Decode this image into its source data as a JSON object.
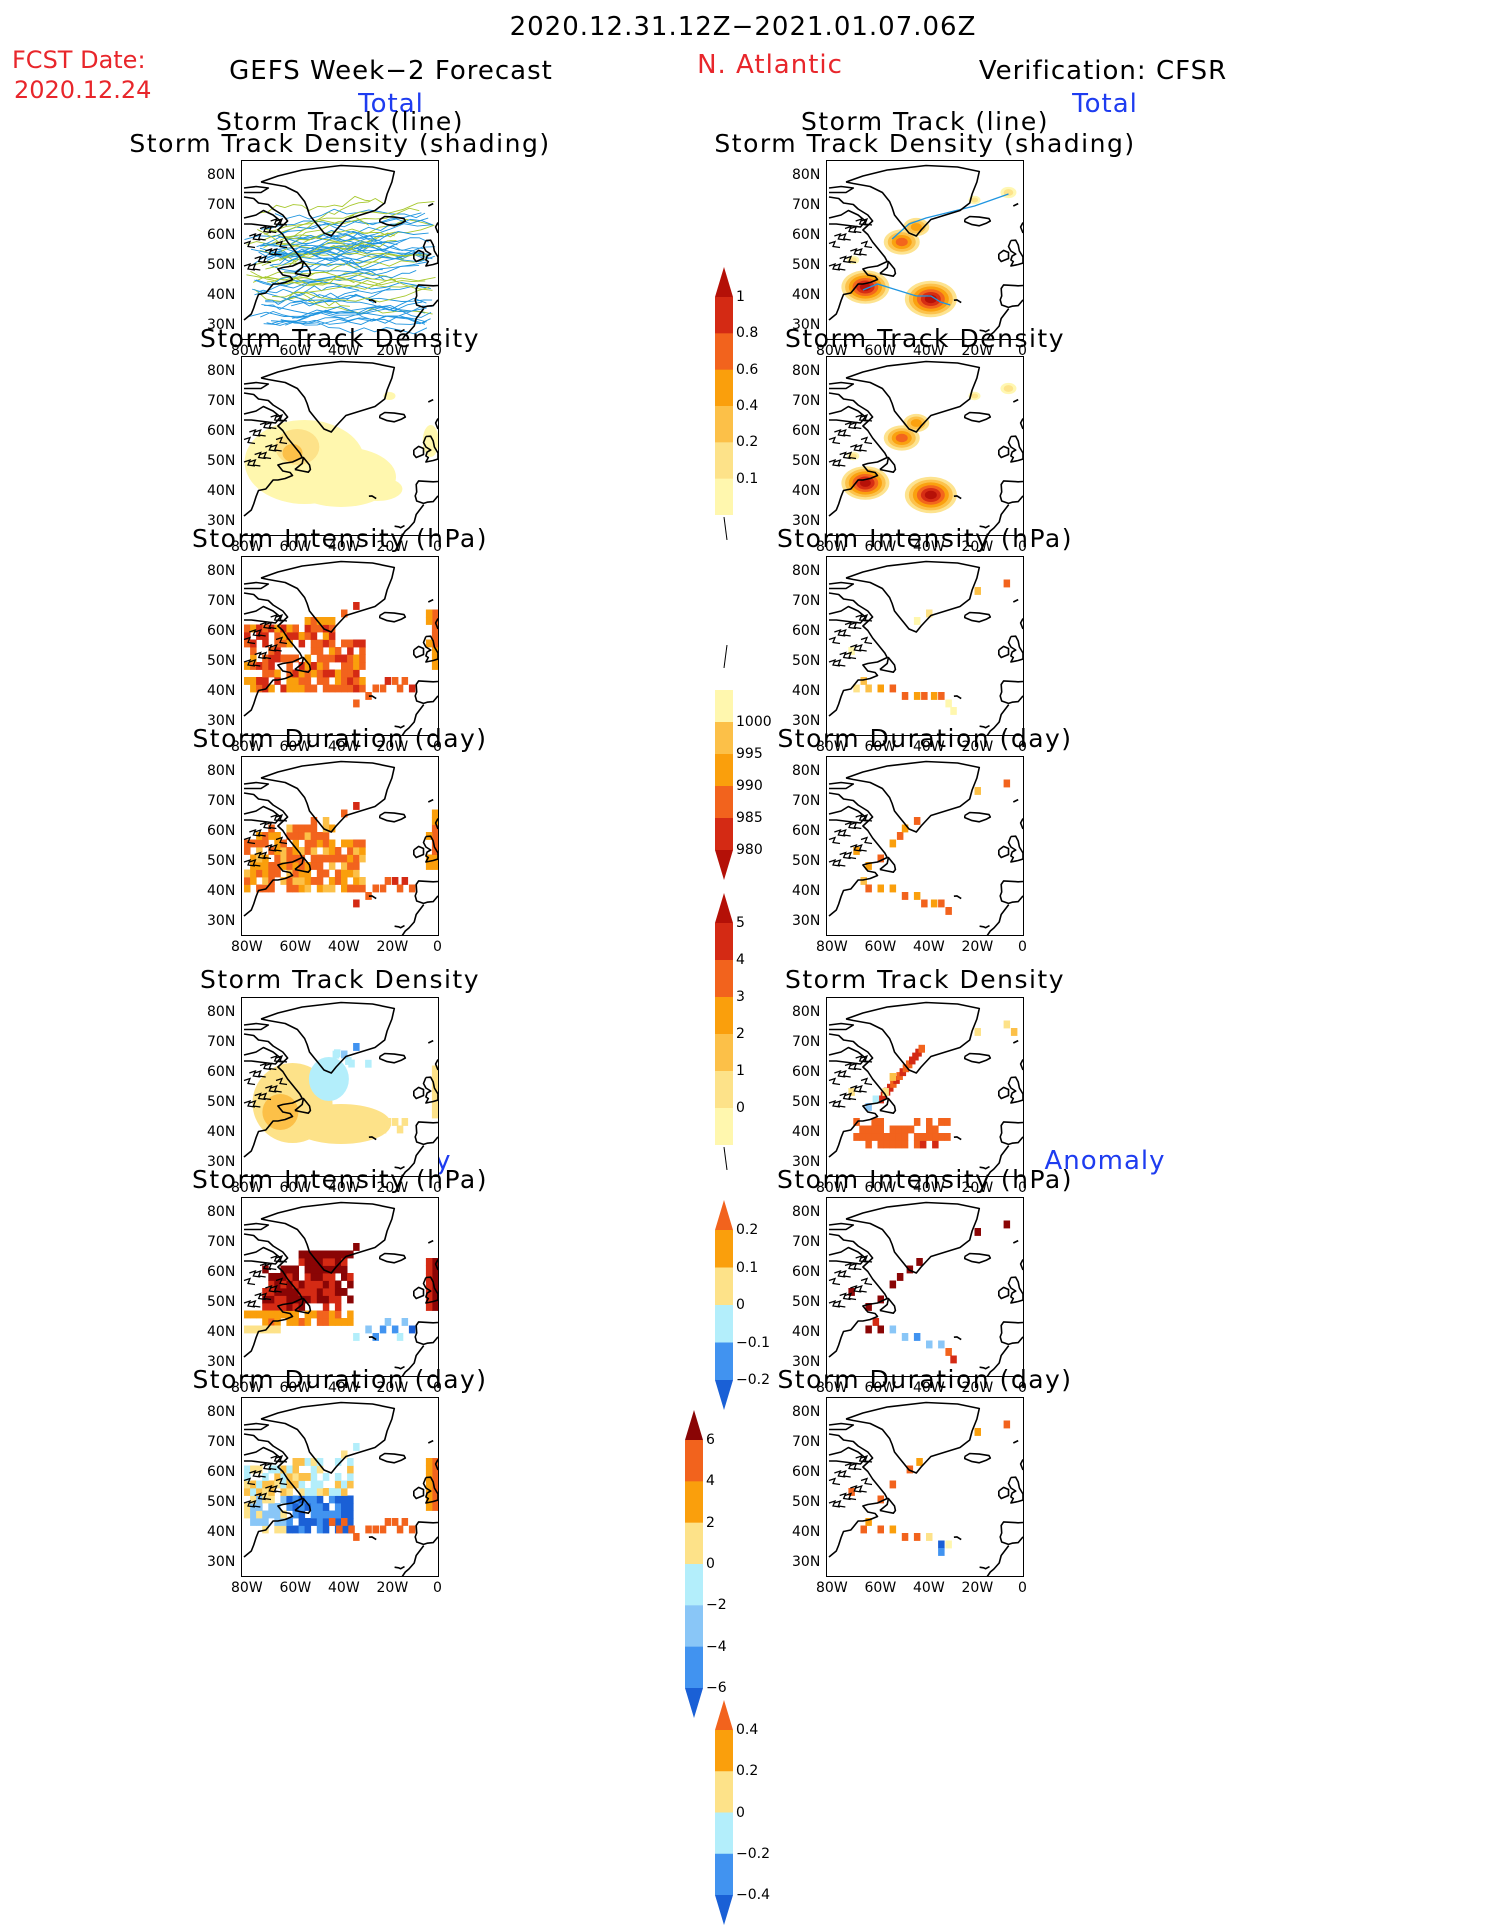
{
  "header": {
    "period": "2020.12.31.12Z−2021.01.07.06Z",
    "fcst_label": "FCST Date:",
    "fcst_date": "2020.12.24",
    "left_title": "GEFS Week−2 Forecast",
    "region": "N. Atlantic",
    "right_title": "Verification: CFSR",
    "total": "Total",
    "anomaly": "Anomaly"
  },
  "panel_titles": {
    "track_line": "Storm Track (line)",
    "track_shading": "Storm Track Density (shading)",
    "density": "Storm Track Density",
    "intensity": "Storm Intensity (hPa)",
    "duration": "Storm Duration (day)"
  },
  "axes": {
    "lat_ticks": [
      "80N",
      "70N",
      "60N",
      "50N",
      "40N",
      "30N"
    ],
    "lon_ticks": [
      "80W",
      "60W",
      "40W",
      "20W",
      "0"
    ]
  },
  "colors": {
    "light_yellow": "#fff7ae",
    "yellow": "#fde289",
    "light_orange": "#fcc048",
    "orange": "#fa9f0c",
    "dark_orange": "#f2631d",
    "red": "#d42a14",
    "dark_red": "#b41007",
    "maroon": "#8a0505",
    "light_cyan": "#b3eefb",
    "light_blue": "#89c6f7",
    "blue": "#4193f0",
    "dark_blue": "#1a60d6",
    "track_blue": "#1f95e0",
    "track_green": "#a7c82c"
  },
  "colorbars": [
    {
      "id": "density_total",
      "labels": [
        "1",
        "0.8",
        "0.6",
        "0.4",
        "0.2",
        "0.1"
      ],
      "colors": [
        "#b41007",
        "#d42a14",
        "#f2631d",
        "#fa9f0c",
        "#fcc048",
        "#fde289",
        "#fff7ae"
      ],
      "extend": "max"
    },
    {
      "id": "intensity_total",
      "labels": [
        "1000",
        "995",
        "990",
        "985",
        "980"
      ],
      "colors": [
        "#fff7ae",
        "#fcc048",
        "#fa9f0c",
        "#f2631d",
        "#d42a14",
        "#b41007"
      ],
      "extend": "min"
    },
    {
      "id": "duration_total",
      "labels": [
        "5",
        "4",
        "3",
        "2",
        "1",
        "0"
      ],
      "colors": [
        "#b41007",
        "#d42a14",
        "#f2631d",
        "#fa9f0c",
        "#fcc048",
        "#fde289",
        "#fff7ae"
      ],
      "extend": "max"
    },
    {
      "id": "density_anom",
      "labels": [
        "0.2",
        "0.1",
        "0",
        "−0.1",
        "−0.2"
      ],
      "colors": [
        "#f2631d",
        "#fa9f0c",
        "#fde289",
        "#b3eefb",
        "#4193f0",
        "#1a60d6"
      ],
      "extend": "both"
    },
    {
      "id": "intensity_anom",
      "labels": [
        "6",
        "4",
        "2",
        "0",
        "−2",
        "−4",
        "−6"
      ],
      "colors": [
        "#8a0505",
        "#f2631d",
        "#fa9f0c",
        "#fde289",
        "#b3eefb",
        "#89c6f7",
        "#4193f0",
        "#1a60d6"
      ],
      "extend": "both"
    },
    {
      "id": "duration_anom",
      "labels": [
        "0.4",
        "0.2",
        "0",
        "−0.2",
        "−0.4"
      ],
      "colors": [
        "#f2631d",
        "#fa9f0c",
        "#fde289",
        "#b3eefb",
        "#4193f0",
        "#1a60d6"
      ],
      "extend": "both"
    }
  ],
  "chart_data": [
    {
      "type": "heatmap",
      "panel": "forecast-total-track",
      "title": "Storm Track (line) / Storm Track Density (shading)",
      "xlim": [
        "80W",
        "0"
      ],
      "ylim": [
        "25N",
        "85N"
      ],
      "series": [
        {
          "name": "ensemble storm tracks",
          "count": "many"
        }
      ]
    },
    {
      "type": "heatmap",
      "panel": "verification-total-track",
      "title": "Storm Track (line) / Storm Track Density (shading)",
      "xlim": [
        "80W",
        "0"
      ],
      "ylim": [
        "25N",
        "85N"
      ],
      "tracks": [
        {
          "lon": [
            -66,
            -60,
            -52,
            -44,
            -38,
            -34,
            -30
          ],
          "lat": [
            42,
            44,
            42,
            40,
            40,
            38,
            37
          ]
        },
        {
          "lon": [
            -54,
            -47,
            -40,
            -30,
            -20,
            -6
          ],
          "lat": [
            59,
            64,
            66,
            68,
            70,
            74
          ]
        }
      ],
      "density_maxima": [
        {
          "lon": -65,
          "lat": 43,
          "value": 1.0
        },
        {
          "lon": -35,
          "lat": 38,
          "value": 0.8
        },
        {
          "lon": -50,
          "lat": 62,
          "value": 0.6
        },
        {
          "lon": -6,
          "lat": 75,
          "value": 0.2
        }
      ]
    },
    {
      "type": "heatmap",
      "panel": "forecast-total-density",
      "title": "Storm Track Density",
      "range": [
        0.1,
        0.4
      ],
      "note": "broad 0.1–0.2 values over NW Atlantic, max ~0.4 near Labrador"
    },
    {
      "type": "heatmap",
      "panel": "verification-total-density",
      "title": "Storm Track Density",
      "range": [
        0.1,
        1.0
      ]
    },
    {
      "type": "heatmap",
      "panel": "forecast-total-intensity",
      "title": "Storm Intensity (hPa)",
      "range": [
        980,
        1000
      ]
    },
    {
      "type": "heatmap",
      "panel": "verification-total-intensity",
      "title": "Storm Intensity (hPa)",
      "range": [
        985,
        1000
      ]
    },
    {
      "type": "heatmap",
      "panel": "forecast-total-duration",
      "title": "Storm Duration (day)",
      "range": [
        0,
        5
      ]
    },
    {
      "type": "heatmap",
      "panel": "verification-total-duration",
      "title": "Storm Duration (day)",
      "range": [
        0,
        3
      ]
    },
    {
      "type": "heatmap",
      "panel": "forecast-anom-density",
      "title": "Storm Track Density",
      "range": [
        -0.1,
        0.1
      ]
    },
    {
      "type": "heatmap",
      "panel": "verification-anom-density",
      "title": "Storm Track Density",
      "range": [
        -0.1,
        0.2
      ]
    },
    {
      "type": "heatmap",
      "panel": "forecast-anom-intensity",
      "title": "Storm Intensity (hPa)",
      "range": [
        -6,
        6
      ]
    },
    {
      "type": "heatmap",
      "panel": "verification-anom-intensity",
      "title": "Storm Intensity (hPa)",
      "range": [
        -4,
        6
      ]
    },
    {
      "type": "heatmap",
      "panel": "forecast-anom-duration",
      "title": "Storm Duration (day)",
      "range": [
        -0.4,
        0.4
      ]
    },
    {
      "type": "heatmap",
      "panel": "verification-anom-duration",
      "title": "Storm Duration (day)",
      "range": [
        -0.4,
        0.4
      ]
    }
  ]
}
